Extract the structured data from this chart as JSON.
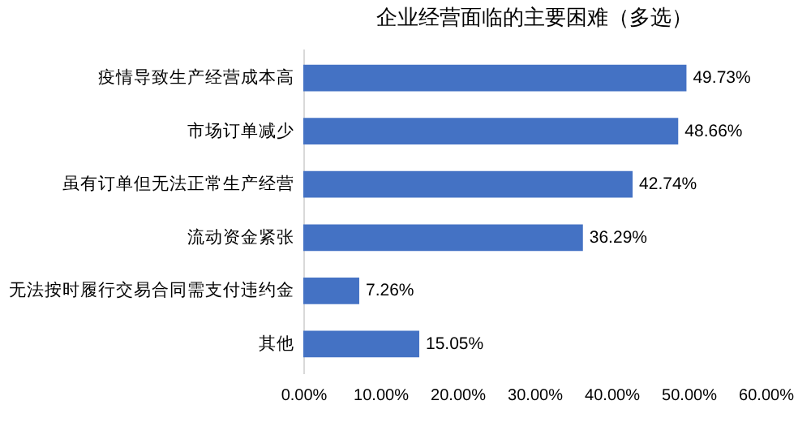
{
  "chart_data": {
    "type": "bar",
    "orientation": "horizontal",
    "title": "企业经营面临的主要困难（多选）",
    "categories": [
      "疫情导致生产经营成本高",
      "市场订单减少",
      "虽有订单但无法正常生产经营",
      "流动资金紧张",
      "无法按时履行交易合同需支付违约金",
      "其他"
    ],
    "values": [
      49.73,
      48.66,
      42.74,
      36.29,
      7.26,
      15.05
    ],
    "value_labels": [
      "49.73%",
      "48.66%",
      "42.74%",
      "36.29%",
      "7.26%",
      "15.05%"
    ],
    "color": "#4472c4",
    "xlim": [
      0,
      60
    ],
    "xticks": [
      {
        "value": 0,
        "label": "0.00%"
      },
      {
        "value": 10,
        "label": "10.00%"
      },
      {
        "value": 20,
        "label": "20.00%"
      },
      {
        "value": 30,
        "label": "30.00%"
      },
      {
        "value": 40,
        "label": "40.00%"
      },
      {
        "value": 50,
        "label": "50.00%"
      },
      {
        "value": 60,
        "label": "60.00%"
      }
    ]
  }
}
